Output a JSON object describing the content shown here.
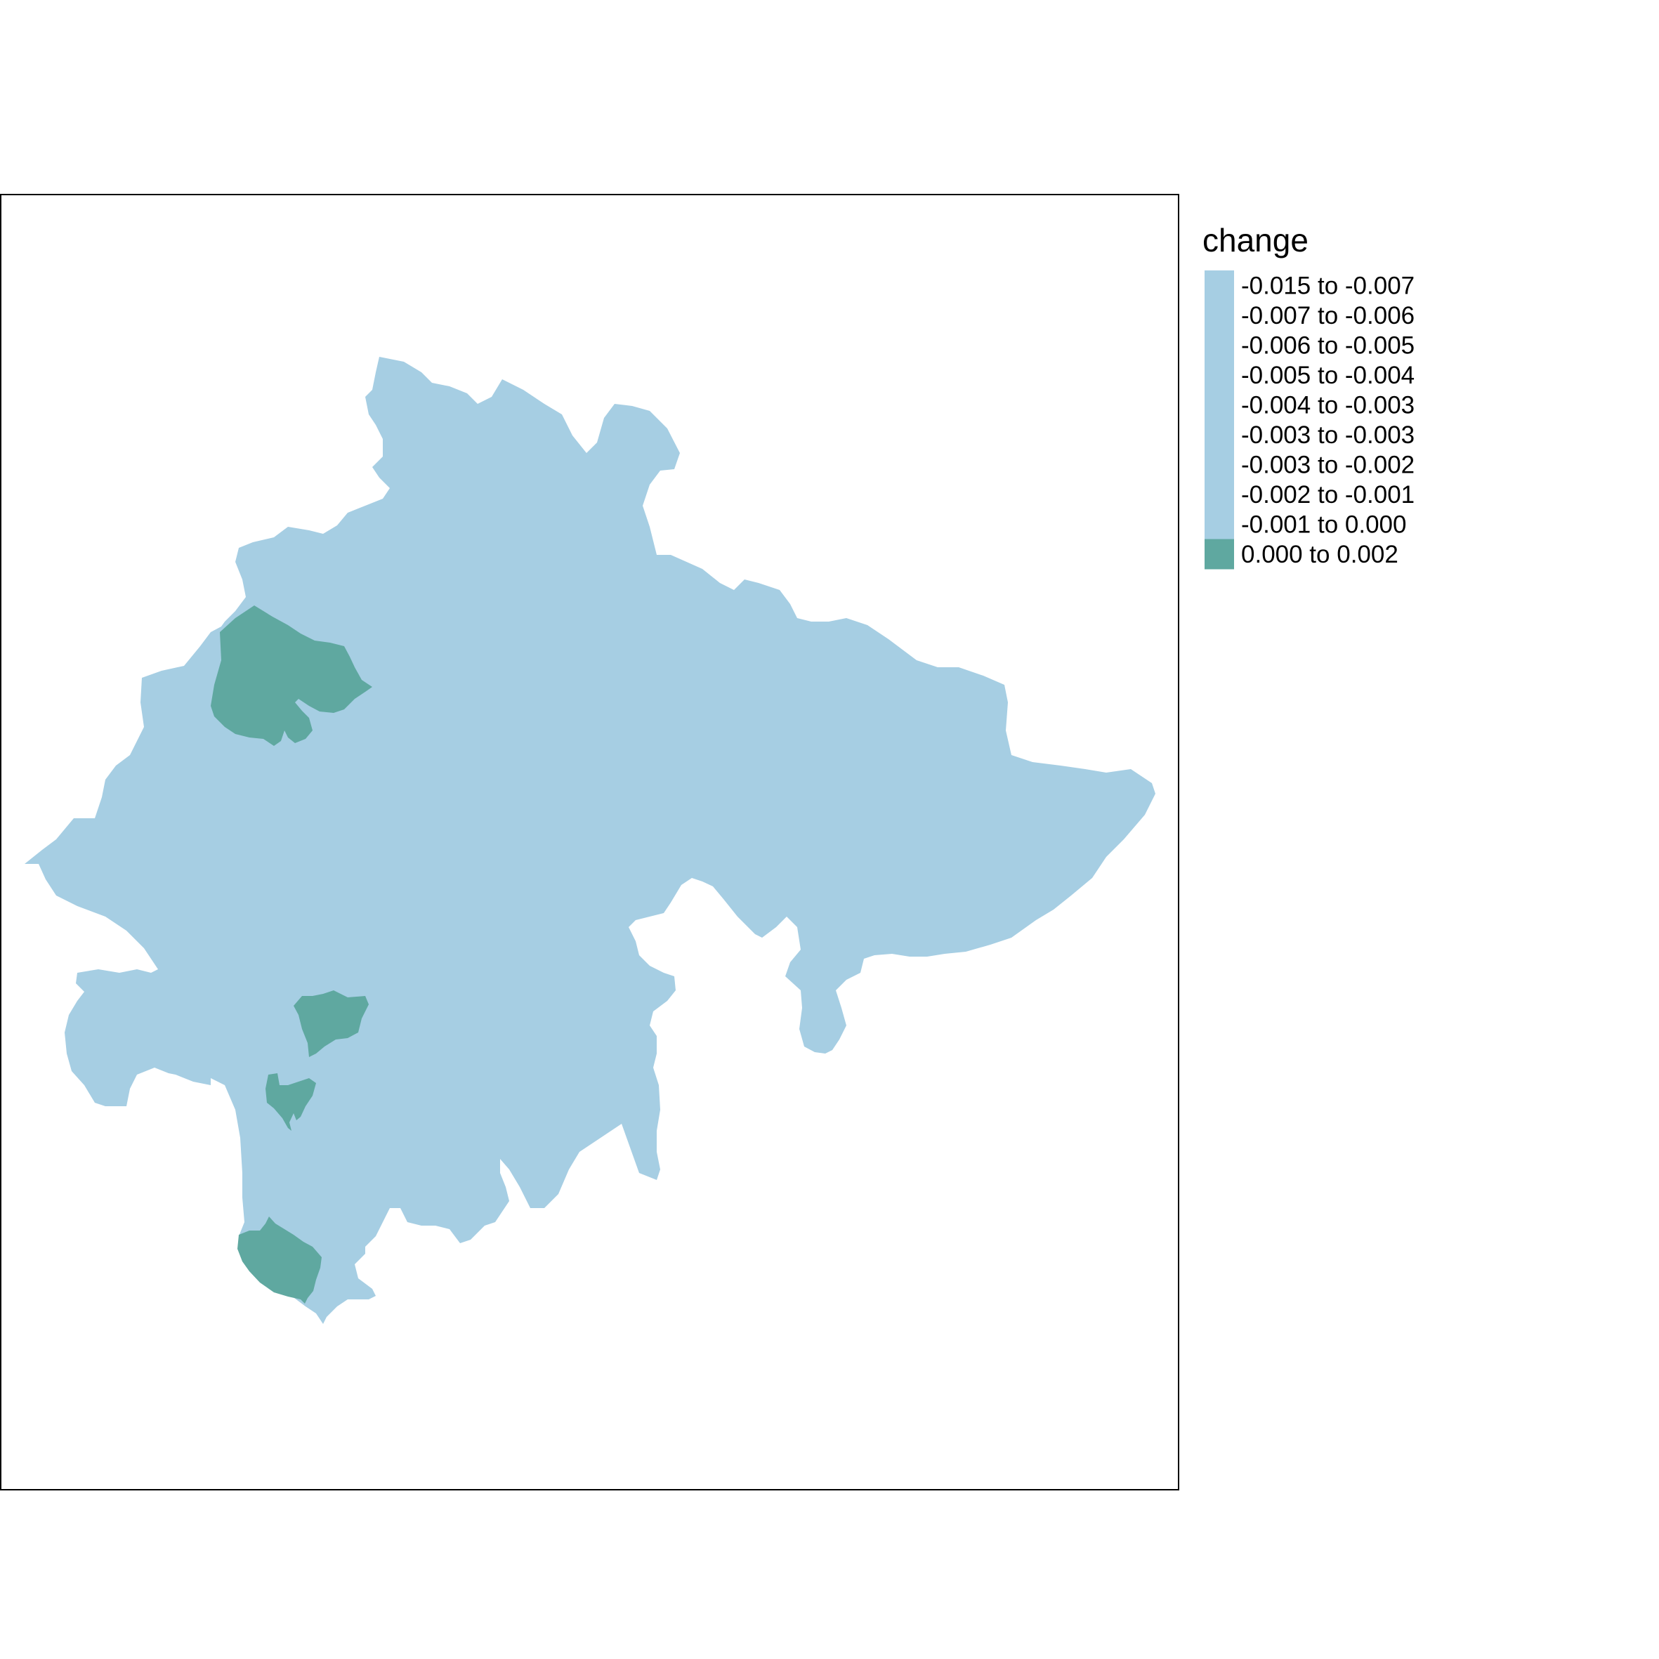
{
  "legend": {
    "title": "change",
    "classes": [
      {
        "label": "-0.015 to -0.007",
        "color": "#a6cee3"
      },
      {
        "label": "-0.007 to -0.006",
        "color": "#a6cee3"
      },
      {
        "label": "-0.006 to -0.005",
        "color": "#a6cee3"
      },
      {
        "label": "-0.005 to -0.004",
        "color": "#a6cee3"
      },
      {
        "label": "-0.004 to -0.003",
        "color": "#a6cee3"
      },
      {
        "label": "-0.003 to -0.003",
        "color": "#a6cee3"
      },
      {
        "label": "-0.003 to -0.002",
        "color": "#a6cee3"
      },
      {
        "label": "-0.002 to -0.001",
        "color": "#a6cee3"
      },
      {
        "label": "-0.001 to 0.000",
        "color": "#a6cee3"
      },
      {
        "label": "0.000 to 0.002",
        "color": "#5fa8a0"
      }
    ]
  },
  "colors": {
    "negative_change": "#a6cee3",
    "positive_change": "#5fa8a0",
    "frame": "#000000"
  }
}
